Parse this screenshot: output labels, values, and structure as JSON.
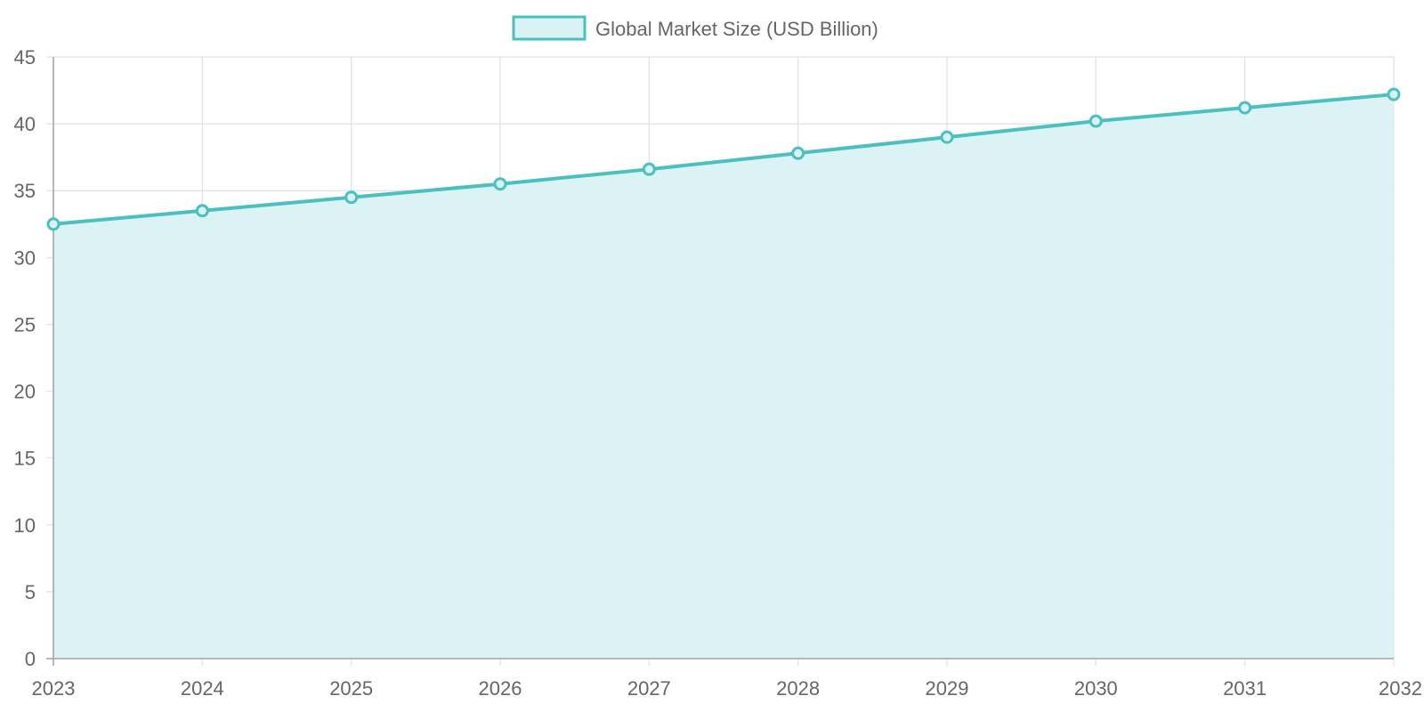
{
  "chart_data": {
    "type": "area",
    "title": "",
    "xlabel": "",
    "ylabel": "",
    "categories": [
      "2023",
      "2024",
      "2025",
      "2026",
      "2027",
      "2028",
      "2029",
      "2030",
      "2031",
      "2032"
    ],
    "series": [
      {
        "name": "Global Market Size (USD Billion)",
        "values": [
          32.5,
          33.5,
          34.5,
          35.5,
          36.6,
          37.8,
          39.0,
          40.2,
          41.2,
          42.2
        ]
      }
    ],
    "ylim": [
      0,
      45
    ],
    "y_ticks": [
      "0",
      "5",
      "10",
      "15",
      "20",
      "25",
      "30",
      "35",
      "40",
      "45"
    ],
    "grid": true,
    "legend_position": "top-center",
    "colors": {
      "line": "#4bc0c0",
      "fill": "#d9f2f3",
      "grid": "#e1e1e1",
      "axis": "#a3a3a3",
      "text": "#666666"
    }
  }
}
